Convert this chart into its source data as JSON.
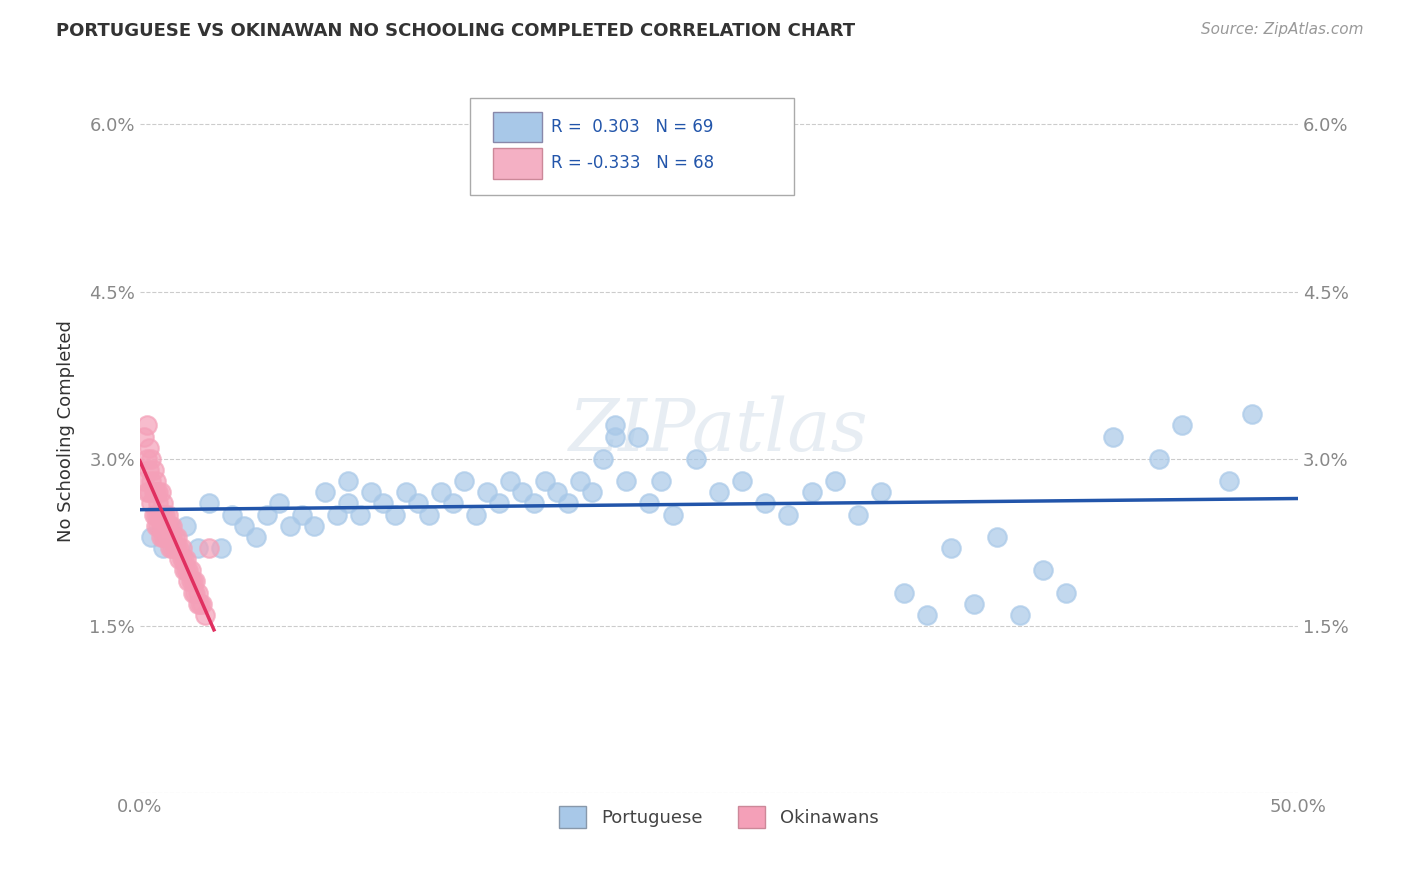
{
  "title": "PORTUGUESE VS OKINAWAN NO SCHOOLING COMPLETED CORRELATION CHART",
  "source_text": "Source: ZipAtlas.com",
  "ylabel": "No Schooling Completed",
  "xlim": [
    0.0,
    0.5
  ],
  "ylim": [
    0.0,
    0.065
  ],
  "xtick_vals": [
    0.0,
    0.05,
    0.1,
    0.15,
    0.2,
    0.25,
    0.3,
    0.35,
    0.4,
    0.45,
    0.5
  ],
  "xtick_labels": [
    "0.0%",
    "",
    "",
    "",
    "",
    "",
    "",
    "",
    "",
    "",
    "50.0%"
  ],
  "ytick_vals": [
    0.0,
    0.015,
    0.03,
    0.045,
    0.06
  ],
  "ytick_labels": [
    "",
    "1.5%",
    "3.0%",
    "4.5%",
    "6.0%"
  ],
  "R_portuguese": 0.303,
  "N_portuguese": 69,
  "R_okinawan": -0.333,
  "N_okinawan": 68,
  "portuguese_color": "#a8c8e8",
  "okinawan_color": "#f4a0b8",
  "portuguese_line_color": "#2255aa",
  "okinawan_line_color": "#e03060",
  "legend_color_portuguese": "#a8c8e8",
  "legend_color_okinawan": "#f4b0c4",
  "title_color": "#333333",
  "axis_label_color": "#333333",
  "tick_color": "#888888",
  "grid_color": "#cccccc",
  "background_color": "#ffffff",
  "portuguese_scatter": [
    [
      0.005,
      0.023
    ],
    [
      0.01,
      0.022
    ],
    [
      0.02,
      0.024
    ],
    [
      0.025,
      0.022
    ],
    [
      0.03,
      0.026
    ],
    [
      0.035,
      0.022
    ],
    [
      0.04,
      0.025
    ],
    [
      0.045,
      0.024
    ],
    [
      0.05,
      0.023
    ],
    [
      0.055,
      0.025
    ],
    [
      0.06,
      0.026
    ],
    [
      0.065,
      0.024
    ],
    [
      0.07,
      0.025
    ],
    [
      0.075,
      0.024
    ],
    [
      0.08,
      0.027
    ],
    [
      0.085,
      0.025
    ],
    [
      0.09,
      0.026
    ],
    [
      0.09,
      0.028
    ],
    [
      0.095,
      0.025
    ],
    [
      0.1,
      0.027
    ],
    [
      0.105,
      0.026
    ],
    [
      0.11,
      0.025
    ],
    [
      0.115,
      0.027
    ],
    [
      0.12,
      0.026
    ],
    [
      0.125,
      0.025
    ],
    [
      0.13,
      0.027
    ],
    [
      0.135,
      0.026
    ],
    [
      0.14,
      0.028
    ],
    [
      0.145,
      0.025
    ],
    [
      0.15,
      0.027
    ],
    [
      0.155,
      0.026
    ],
    [
      0.16,
      0.028
    ],
    [
      0.165,
      0.027
    ],
    [
      0.17,
      0.026
    ],
    [
      0.175,
      0.028
    ],
    [
      0.18,
      0.027
    ],
    [
      0.185,
      0.026
    ],
    [
      0.19,
      0.028
    ],
    [
      0.195,
      0.027
    ],
    [
      0.2,
      0.03
    ],
    [
      0.205,
      0.032
    ],
    [
      0.205,
      0.033
    ],
    [
      0.21,
      0.028
    ],
    [
      0.215,
      0.032
    ],
    [
      0.22,
      0.026
    ],
    [
      0.225,
      0.028
    ],
    [
      0.23,
      0.025
    ],
    [
      0.24,
      0.03
    ],
    [
      0.25,
      0.027
    ],
    [
      0.26,
      0.028
    ],
    [
      0.27,
      0.026
    ],
    [
      0.28,
      0.025
    ],
    [
      0.29,
      0.027
    ],
    [
      0.3,
      0.028
    ],
    [
      0.31,
      0.025
    ],
    [
      0.32,
      0.027
    ],
    [
      0.33,
      0.018
    ],
    [
      0.34,
      0.016
    ],
    [
      0.35,
      0.022
    ],
    [
      0.36,
      0.017
    ],
    [
      0.37,
      0.023
    ],
    [
      0.38,
      0.016
    ],
    [
      0.39,
      0.02
    ],
    [
      0.4,
      0.018
    ],
    [
      0.42,
      0.032
    ],
    [
      0.44,
      0.03
    ],
    [
      0.45,
      0.033
    ],
    [
      0.47,
      0.028
    ],
    [
      0.48,
      0.034
    ]
  ],
  "okinawan_scatter": [
    [
      0.002,
      0.032
    ],
    [
      0.002,
      0.028
    ],
    [
      0.003,
      0.033
    ],
    [
      0.003,
      0.03
    ],
    [
      0.003,
      0.027
    ],
    [
      0.004,
      0.031
    ],
    [
      0.004,
      0.029
    ],
    [
      0.004,
      0.027
    ],
    [
      0.005,
      0.03
    ],
    [
      0.005,
      0.028
    ],
    [
      0.005,
      0.026
    ],
    [
      0.006,
      0.029
    ],
    [
      0.006,
      0.027
    ],
    [
      0.006,
      0.025
    ],
    [
      0.007,
      0.028
    ],
    [
      0.007,
      0.027
    ],
    [
      0.007,
      0.025
    ],
    [
      0.007,
      0.024
    ],
    [
      0.008,
      0.027
    ],
    [
      0.008,
      0.026
    ],
    [
      0.008,
      0.025
    ],
    [
      0.008,
      0.024
    ],
    [
      0.009,
      0.027
    ],
    [
      0.009,
      0.025
    ],
    [
      0.009,
      0.024
    ],
    [
      0.009,
      0.023
    ],
    [
      0.01,
      0.026
    ],
    [
      0.01,
      0.025
    ],
    [
      0.01,
      0.024
    ],
    [
      0.01,
      0.023
    ],
    [
      0.011,
      0.025
    ],
    [
      0.011,
      0.024
    ],
    [
      0.011,
      0.023
    ],
    [
      0.012,
      0.025
    ],
    [
      0.012,
      0.024
    ],
    [
      0.012,
      0.023
    ],
    [
      0.013,
      0.024
    ],
    [
      0.013,
      0.023
    ],
    [
      0.013,
      0.022
    ],
    [
      0.014,
      0.024
    ],
    [
      0.014,
      0.023
    ],
    [
      0.014,
      0.022
    ],
    [
      0.015,
      0.023
    ],
    [
      0.015,
      0.022
    ],
    [
      0.016,
      0.023
    ],
    [
      0.016,
      0.022
    ],
    [
      0.017,
      0.022
    ],
    [
      0.017,
      0.021
    ],
    [
      0.018,
      0.022
    ],
    [
      0.018,
      0.021
    ],
    [
      0.019,
      0.021
    ],
    [
      0.019,
      0.02
    ],
    [
      0.02,
      0.021
    ],
    [
      0.02,
      0.02
    ],
    [
      0.021,
      0.02
    ],
    [
      0.021,
      0.019
    ],
    [
      0.022,
      0.02
    ],
    [
      0.022,
      0.019
    ],
    [
      0.023,
      0.019
    ],
    [
      0.023,
      0.018
    ],
    [
      0.024,
      0.019
    ],
    [
      0.024,
      0.018
    ],
    [
      0.025,
      0.018
    ],
    [
      0.025,
      0.017
    ],
    [
      0.026,
      0.017
    ],
    [
      0.027,
      0.017
    ],
    [
      0.028,
      0.016
    ],
    [
      0.03,
      0.022
    ]
  ]
}
